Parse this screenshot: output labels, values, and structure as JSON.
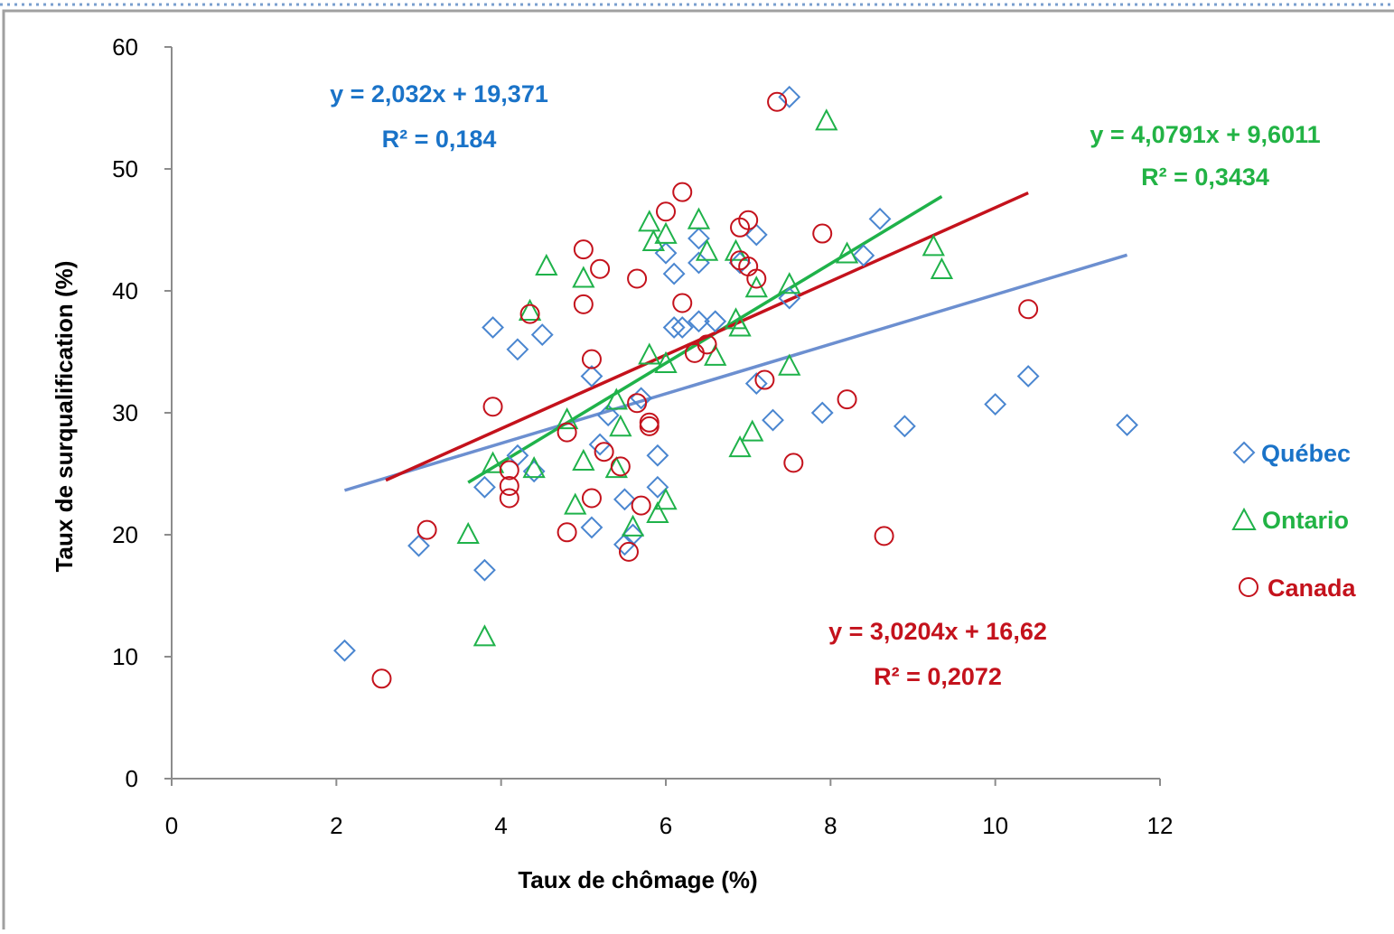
{
  "colors": {
    "quebec": "#4a86d0",
    "ontario": "#1fb24a",
    "canada": "#c4121c",
    "quebec_line": "#6c8fd0",
    "quebec_text": "#1a73c8",
    "ontario_text": "#22b345",
    "canada_text": "#c4121c"
  },
  "chart_data": {
    "type": "scatter",
    "title": "",
    "xlabel": "Taux de chômage (%)",
    "ylabel": "Taux de surqualification (%)",
    "xlim": [
      0,
      12
    ],
    "ylim": [
      0,
      60
    ],
    "x_ticks": [
      "0",
      "2",
      "4",
      "6",
      "8",
      "10",
      "12"
    ],
    "y_ticks": [
      "0",
      "10",
      "20",
      "30",
      "40",
      "50",
      "60"
    ],
    "grid": false,
    "legend_position": "right",
    "series": [
      {
        "name": "Québec",
        "marker": "diamond",
        "color": "#4a86d0",
        "equation": "y = 2,032x + 19,371",
        "r2": "R² = 0,184",
        "trend": {
          "slope": 2.032,
          "intercept": 19.371,
          "x_range": [
            2.1,
            11.6
          ]
        },
        "points": [
          [
            2.1,
            10.5
          ],
          [
            3.0,
            19.1
          ],
          [
            3.8,
            17.1
          ],
          [
            3.8,
            23.9
          ],
          [
            3.9,
            37.0
          ],
          [
            4.2,
            35.2
          ],
          [
            4.2,
            26.5
          ],
          [
            4.4,
            25.2
          ],
          [
            4.5,
            36.4
          ],
          [
            5.1,
            33.0
          ],
          [
            5.1,
            20.6
          ],
          [
            5.2,
            27.4
          ],
          [
            5.3,
            29.8
          ],
          [
            5.5,
            22.9
          ],
          [
            5.5,
            19.2
          ],
          [
            5.6,
            20.0
          ],
          [
            5.7,
            31.2
          ],
          [
            5.9,
            26.5
          ],
          [
            5.9,
            23.9
          ],
          [
            6.0,
            43.1
          ],
          [
            6.1,
            41.4
          ],
          [
            6.1,
            37.0
          ],
          [
            6.2,
            37.0
          ],
          [
            6.4,
            44.3
          ],
          [
            6.4,
            42.3
          ],
          [
            6.4,
            37.5
          ],
          [
            6.6,
            37.5
          ],
          [
            6.9,
            42.3
          ],
          [
            7.1,
            44.6
          ],
          [
            7.1,
            32.4
          ],
          [
            7.3,
            29.4
          ],
          [
            7.5,
            39.4
          ],
          [
            7.5,
            55.9
          ],
          [
            7.9,
            30.0
          ],
          [
            8.4,
            42.9
          ],
          [
            8.6,
            45.9
          ],
          [
            8.9,
            28.9
          ],
          [
            10.0,
            30.7
          ],
          [
            10.4,
            33.0
          ],
          [
            11.6,
            29.0
          ]
        ]
      },
      {
        "name": "Ontario",
        "marker": "triangle",
        "color": "#1fb24a",
        "equation": "y = 4,0791x + 9,6011",
        "r2": "R² = 0,3434",
        "trend": {
          "slope": 4.0791,
          "intercept": 9.6011,
          "x_range": [
            3.6,
            9.35
          ]
        },
        "points": [
          [
            3.6,
            20.0
          ],
          [
            3.8,
            11.6
          ],
          [
            3.9,
            25.8
          ],
          [
            4.35,
            38.3
          ],
          [
            4.4,
            25.4
          ],
          [
            4.55,
            42.0
          ],
          [
            4.8,
            29.4
          ],
          [
            4.9,
            22.4
          ],
          [
            5.0,
            41.0
          ],
          [
            5.0,
            26.0
          ],
          [
            5.4,
            31.0
          ],
          [
            5.4,
            25.4
          ],
          [
            5.45,
            28.8
          ],
          [
            5.6,
            20.6
          ],
          [
            5.8,
            45.6
          ],
          [
            5.8,
            34.7
          ],
          [
            5.85,
            44.0
          ],
          [
            5.9,
            21.7
          ],
          [
            6.0,
            44.6
          ],
          [
            6.0,
            34.0
          ],
          [
            6.0,
            22.8
          ],
          [
            6.4,
            45.8
          ],
          [
            6.5,
            43.2
          ],
          [
            6.6,
            34.6
          ],
          [
            6.85,
            43.2
          ],
          [
            6.85,
            37.6
          ],
          [
            6.9,
            37.0
          ],
          [
            6.9,
            27.1
          ],
          [
            7.05,
            28.4
          ],
          [
            7.1,
            40.2
          ],
          [
            7.5,
            40.5
          ],
          [
            7.5,
            33.8
          ],
          [
            7.95,
            53.9
          ],
          [
            8.2,
            43.0
          ],
          [
            9.25,
            43.6
          ],
          [
            9.35,
            41.7
          ]
        ]
      },
      {
        "name": "Canada",
        "marker": "circle",
        "color": "#c4121c",
        "equation": "y = 3,0204x + 16,62",
        "r2": "R² = 0,2072",
        "trend": {
          "slope": 3.0204,
          "intercept": 16.62,
          "x_range": [
            2.6,
            10.4
          ]
        },
        "points": [
          [
            2.55,
            8.2
          ],
          [
            3.1,
            20.4
          ],
          [
            3.9,
            30.5
          ],
          [
            4.1,
            25.3
          ],
          [
            4.1,
            24.0
          ],
          [
            4.1,
            23.0
          ],
          [
            4.35,
            38.1
          ],
          [
            4.8,
            28.4
          ],
          [
            4.8,
            20.2
          ],
          [
            5.0,
            43.4
          ],
          [
            5.0,
            38.9
          ],
          [
            5.1,
            34.4
          ],
          [
            5.1,
            23.0
          ],
          [
            5.2,
            41.8
          ],
          [
            5.25,
            26.8
          ],
          [
            5.45,
            25.6
          ],
          [
            5.55,
            18.6
          ],
          [
            5.65,
            41.0
          ],
          [
            5.65,
            30.8
          ],
          [
            5.7,
            22.4
          ],
          [
            5.8,
            29.2
          ],
          [
            5.8,
            28.9
          ],
          [
            6.0,
            46.5
          ],
          [
            6.2,
            48.1
          ],
          [
            6.2,
            39.0
          ],
          [
            6.35,
            34.9
          ],
          [
            6.5,
            35.6
          ],
          [
            6.9,
            45.2
          ],
          [
            6.9,
            42.5
          ],
          [
            7.0,
            45.8
          ],
          [
            7.0,
            42.0
          ],
          [
            7.1,
            41.0
          ],
          [
            7.2,
            32.7
          ],
          [
            7.35,
            55.5
          ],
          [
            7.55,
            25.9
          ],
          [
            7.9,
            44.7
          ],
          [
            8.2,
            31.1
          ],
          [
            8.65,
            19.9
          ],
          [
            10.4,
            38.5
          ]
        ]
      }
    ]
  }
}
